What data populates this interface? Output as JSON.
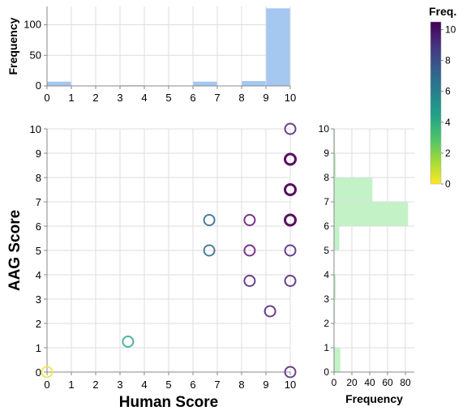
{
  "chart_data": [
    {
      "id": "top-histogram",
      "type": "bar",
      "xlabel": "",
      "ylabel": "Frequency",
      "xlim": [
        0,
        10
      ],
      "ylim": [
        0,
        130
      ],
      "x_ticks": [
        "0",
        "1",
        "2",
        "3",
        "4",
        "5",
        "6",
        "7",
        "8",
        "9",
        "10"
      ],
      "y_ticks": [
        "0",
        "50",
        "100"
      ],
      "bar_color": "#a4c8f0",
      "bins": [
        {
          "x0": 0,
          "x1": 1,
          "value": 7
        },
        {
          "x0": 1,
          "x1": 2,
          "value": 0
        },
        {
          "x0": 2,
          "x1": 3,
          "value": 0
        },
        {
          "x0": 3,
          "x1": 4,
          "value": 1
        },
        {
          "x0": 4,
          "x1": 5,
          "value": 0
        },
        {
          "x0": 5,
          "x1": 6,
          "value": 0
        },
        {
          "x0": 6,
          "x1": 7,
          "value": 7
        },
        {
          "x0": 7,
          "x1": 8,
          "value": 0
        },
        {
          "x0": 8,
          "x1": 9,
          "value": 8
        },
        {
          "x0": 9,
          "x1": 10,
          "value": 127
        }
      ]
    },
    {
      "id": "main-scatter",
      "type": "scatter",
      "xlabel": "Human Score",
      "ylabel": "AAG Score",
      "xlim": [
        0,
        10
      ],
      "ylim": [
        0,
        10
      ],
      "x_ticks": [
        "0",
        "1",
        "2",
        "3",
        "4",
        "5",
        "6",
        "7",
        "8",
        "9",
        "10"
      ],
      "y_ticks": [
        "0",
        "1",
        "2",
        "3",
        "4",
        "5",
        "6",
        "7",
        "8",
        "9",
        "10"
      ],
      "points": [
        {
          "x": 0,
          "y": 0,
          "freq": 0
        },
        {
          "x": 3.33,
          "y": 1.25,
          "freq": 3
        },
        {
          "x": 6.67,
          "y": 6.25,
          "freq": 5
        },
        {
          "x": 6.67,
          "y": 5,
          "freq": 5
        },
        {
          "x": 8.33,
          "y": 6.25,
          "freq": 9
        },
        {
          "x": 8.33,
          "y": 5,
          "freq": 9
        },
        {
          "x": 8.33,
          "y": 3.75,
          "freq": 8
        },
        {
          "x": 9.17,
          "y": 2.5,
          "freq": 8
        },
        {
          "x": 10,
          "y": 10,
          "freq": 8
        },
        {
          "x": 10,
          "y": 8.75,
          "freq": 10
        },
        {
          "x": 10,
          "y": 7.5,
          "freq": 10
        },
        {
          "x": 10,
          "y": 6.25,
          "freq": 10
        },
        {
          "x": 10,
          "y": 5,
          "freq": 8
        },
        {
          "x": 10,
          "y": 3.75,
          "freq": 8
        },
        {
          "x": 10,
          "y": 0,
          "freq": 8
        }
      ]
    },
    {
      "id": "right-histogram",
      "type": "bar",
      "orientation": "horizontal",
      "xlabel": "Frequency",
      "ylabel": "",
      "xlim": [
        0,
        90
      ],
      "ylim": [
        0,
        10
      ],
      "x_ticks": [
        "0",
        "20",
        "40",
        "60",
        "80"
      ],
      "y_ticks": [
        "0",
        "1",
        "2",
        "3",
        "4",
        "5",
        "6",
        "7",
        "8",
        "9",
        "10"
      ],
      "bar_color": "#c3f2c6",
      "bins": [
        {
          "y0": 0,
          "y1": 1,
          "value": 7
        },
        {
          "y0": 1,
          "y1": 2,
          "value": 0
        },
        {
          "y0": 2,
          "y1": 3,
          "value": 1
        },
        {
          "y0": 3,
          "y1": 4,
          "value": 2
        },
        {
          "y0": 4,
          "y1": 5,
          "value": 0
        },
        {
          "y0": 5,
          "y1": 6,
          "value": 6
        },
        {
          "y0": 6,
          "y1": 7,
          "value": 83
        },
        {
          "y0": 7,
          "y1": 8,
          "value": 43
        },
        {
          "y0": 8,
          "y1": 9,
          "value": 2
        },
        {
          "y0": 9,
          "y1": 10,
          "value": 1
        }
      ]
    }
  ],
  "legend": {
    "title": "Freq.",
    "ticks": [
      "0",
      "2",
      "4",
      "6",
      "8",
      "10"
    ],
    "domain": [
      0,
      10.5
    ],
    "gradient": [
      "#fde725",
      "#a0da39",
      "#4ac16d",
      "#1fa187",
      "#277f8e",
      "#365c8d",
      "#46327e",
      "#440154"
    ],
    "stroke_palette": [
      "#f0e65a",
      "#a6dc84",
      "#6ccb9a",
      "#4fb4a0",
      "#4a9aa2",
      "#4a7d9c",
      "#4e6497",
      "#5a4f92",
      "#6a3f8c",
      "#7a3388",
      "#5b0f63"
    ]
  }
}
